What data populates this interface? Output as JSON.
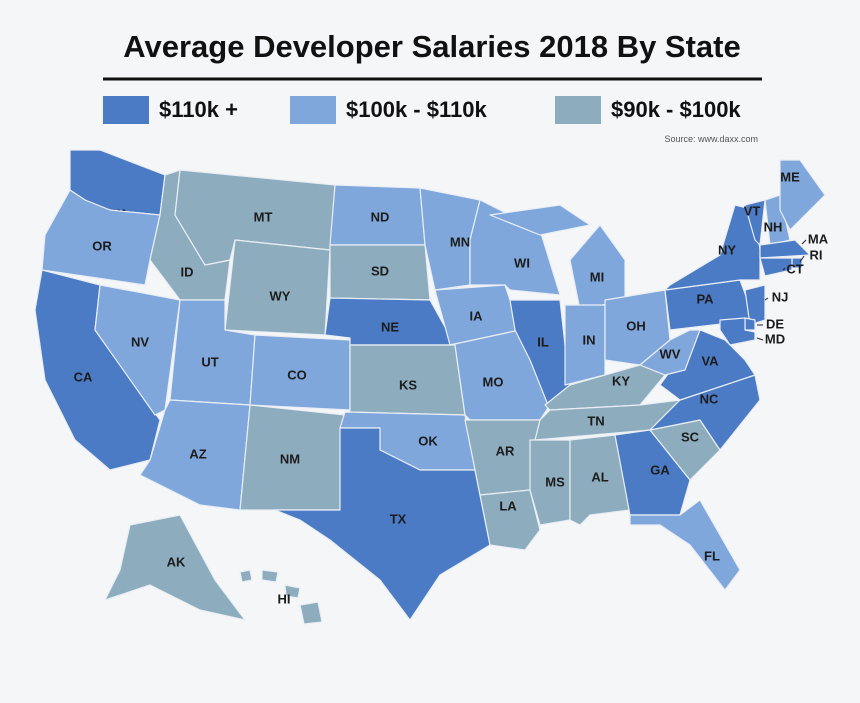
{
  "header": {
    "title": "Average Developer Salaries 2018 By State",
    "source": "Source: www.daxx.com"
  },
  "legend": [
    {
      "label": "$110k +",
      "color": "#4b7bc5"
    },
    {
      "label": "$100k - $110k",
      "color": "#80a7dc"
    },
    {
      "label": "$90k - $100k",
      "color": "#8dadbf"
    }
  ],
  "states": [
    {
      "label": "WA",
      "tier": 0
    },
    {
      "label": "OR",
      "tier": 1
    },
    {
      "label": "CA",
      "tier": 0
    },
    {
      "label": "NV",
      "tier": 1
    },
    {
      "label": "ID",
      "tier": 2
    },
    {
      "label": "MT",
      "tier": 2
    },
    {
      "label": "WY",
      "tier": 2
    },
    {
      "label": "UT",
      "tier": 1
    },
    {
      "label": "CO",
      "tier": 1
    },
    {
      "label": "AZ",
      "tier": 1
    },
    {
      "label": "NM",
      "tier": 2
    },
    {
      "label": "ND",
      "tier": 1
    },
    {
      "label": "SD",
      "tier": 2
    },
    {
      "label": "NE",
      "tier": 0
    },
    {
      "label": "KS",
      "tier": 2
    },
    {
      "label": "OK",
      "tier": 1
    },
    {
      "label": "TX",
      "tier": 0
    },
    {
      "label": "MN",
      "tier": 1
    },
    {
      "label": "IA",
      "tier": 1
    },
    {
      "label": "MO",
      "tier": 1
    },
    {
      "label": "AR",
      "tier": 2
    },
    {
      "label": "LA",
      "tier": 2
    },
    {
      "label": "WI",
      "tier": 1
    },
    {
      "label": "IL",
      "tier": 0
    },
    {
      "label": "MI",
      "tier": 1
    },
    {
      "label": "IN",
      "tier": 1
    },
    {
      "label": "OH",
      "tier": 1
    },
    {
      "label": "KY",
      "tier": 2
    },
    {
      "label": "TN",
      "tier": 2
    },
    {
      "label": "MS",
      "tier": 2
    },
    {
      "label": "AL",
      "tier": 2
    },
    {
      "label": "GA",
      "tier": 0
    },
    {
      "label": "FL",
      "tier": 1
    },
    {
      "label": "SC",
      "tier": 2
    },
    {
      "label": "NC",
      "tier": 0
    },
    {
      "label": "VA",
      "tier": 0
    },
    {
      "label": "WV",
      "tier": 1
    },
    {
      "label": "PA",
      "tier": 0
    },
    {
      "label": "NY",
      "tier": 0
    },
    {
      "label": "VT",
      "tier": 0
    },
    {
      "label": "NH",
      "tier": 1
    },
    {
      "label": "ME",
      "tier": 1
    },
    {
      "label": "MA",
      "tier": 0
    },
    {
      "label": "RI",
      "tier": 0
    },
    {
      "label": "CT",
      "tier": 0
    },
    {
      "label": "NJ",
      "tier": 0
    },
    {
      "label": "DE",
      "tier": 0
    },
    {
      "label": "MD",
      "tier": 0
    },
    {
      "label": "AK",
      "tier": 2
    },
    {
      "label": "HI",
      "tier": 2
    }
  ]
}
